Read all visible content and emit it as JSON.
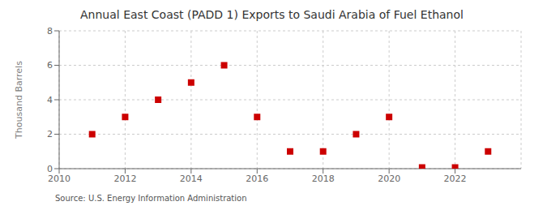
{
  "chart_data": {
    "type": "scatter",
    "title": "Annual East Coast (PADD 1) Exports to Saudi Arabia of Fuel Ethanol",
    "y_label": "Thousand Barrels",
    "annotations": [
      "Source: U.S. Energy Information Administration"
    ],
    "x": [
      2011,
      2012,
      2013,
      2014,
      2015,
      2016,
      2017,
      2018,
      2019,
      2020,
      2021,
      2022,
      2023
    ],
    "values": [
      2,
      3,
      4,
      5,
      6,
      3,
      1,
      1,
      2,
      3,
      0.07,
      0.07,
      1
    ],
    "xlim": [
      2010,
      2024
    ],
    "xticks": [
      2010,
      2012,
      2014,
      2016,
      2018,
      2020,
      2022
    ],
    "ylim": [
      0,
      8
    ],
    "yticks": [
      0,
      2,
      4,
      6,
      8
    ],
    "color": "#cc0000",
    "marker": "square",
    "grid": true
  }
}
